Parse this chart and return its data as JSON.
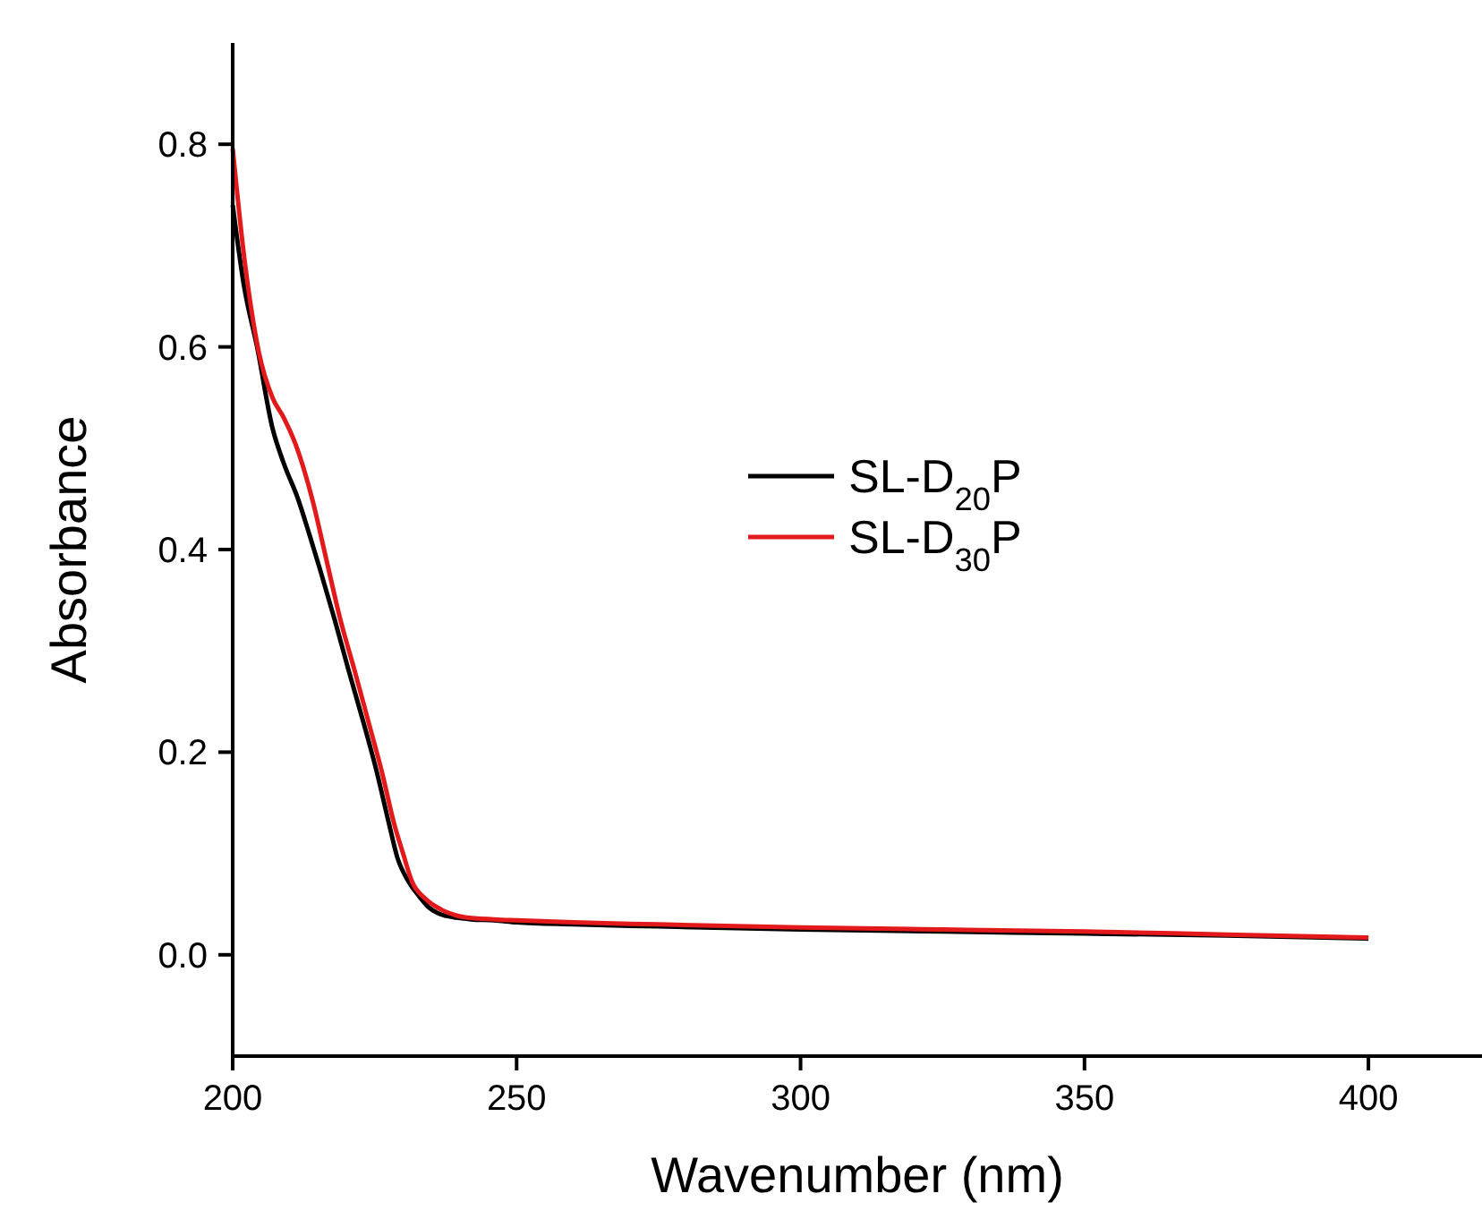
{
  "chart_data": {
    "type": "line",
    "xlabel": "Wavenumber (nm)",
    "ylabel": "Absorbance",
    "xlim": [
      200,
      420
    ],
    "xticks": [
      200,
      250,
      300,
      350,
      400
    ],
    "ylim": [
      -0.1,
      0.9
    ],
    "yticks": [
      {
        "value": 0,
        "label": "0.0"
      },
      0.2,
      0.4,
      0.6,
      0.8
    ],
    "legend": "right",
    "grid": false,
    "line_style": "solid",
    "marker": "none",
    "series": [
      {
        "name": "SL-D$_{20}$P",
        "color": "#000000",
        "x": [
          200,
          202,
          204.3,
          207,
          209,
          211.5,
          213.5,
          215.4,
          218,
          220.3,
          223,
          225.4,
          227.5,
          229,
          231,
          232.8,
          234.5,
          236.6,
          239,
          242,
          246,
          250,
          260,
          275,
          300,
          325,
          350,
          375,
          400
        ],
        "values": [
          0.74,
          0.66,
          0.6,
          0.52,
          0.485,
          0.45,
          0.415,
          0.38,
          0.33,
          0.283,
          0.23,
          0.18,
          0.13,
          0.096,
          0.072,
          0.058,
          0.047,
          0.04,
          0.037,
          0.035,
          0.034,
          0.032,
          0.03,
          0.028,
          0.025,
          0.023,
          0.021,
          0.019,
          0.016
        ]
      },
      {
        "name": "SL-D$_{30}$P",
        "color": "#e31a1c",
        "x": [
          200,
          202,
          204.6,
          207,
          209,
          211,
          214,
          216.5,
          219,
          221.5,
          224,
          226.3,
          228.4,
          230,
          231.6,
          234,
          236.6,
          241,
          246,
          250,
          260,
          275,
          300,
          325,
          350,
          375,
          400
        ],
        "values": [
          0.796,
          0.69,
          0.595,
          0.55,
          0.53,
          0.505,
          0.45,
          0.39,
          0.33,
          0.28,
          0.228,
          0.18,
          0.13,
          0.1,
          0.072,
          0.055,
          0.045,
          0.037,
          0.035,
          0.034,
          0.032,
          0.03,
          0.027,
          0.025,
          0.023,
          0.02,
          0.017
        ]
      }
    ]
  }
}
